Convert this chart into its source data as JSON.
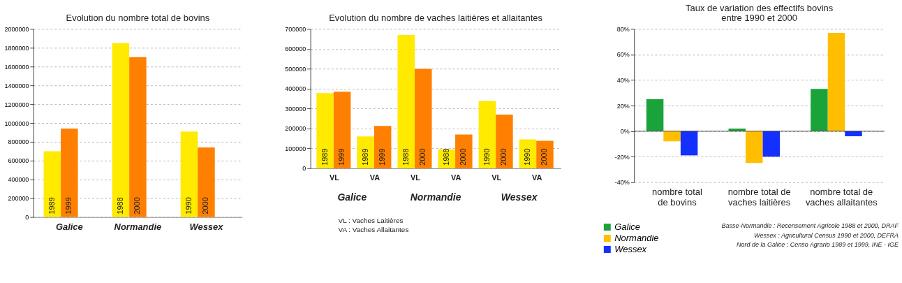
{
  "chart_data": [
    {
      "type": "bar",
      "title": "Evolution du nombre total de bovins",
      "categories": [
        "Galice",
        "Normandie",
        "Wessex"
      ],
      "series": [
        {
          "color": "#ffea00",
          "values": [
            700000,
            1850000,
            910000
          ]
        },
        {
          "color": "#ff8000",
          "values": [
            940000,
            1700000,
            740000
          ]
        }
      ],
      "ylim": [
        0,
        2000000
      ],
      "yticks": [
        0,
        200000,
        400000,
        600000,
        800000,
        1000000,
        1200000,
        1400000,
        1600000,
        1800000,
        2000000
      ],
      "grid": "y",
      "legend": false,
      "annotations": [
        "1989",
        "1988",
        "1990",
        "1999",
        "2000",
        "2000"
      ]
    },
    {
      "type": "bar",
      "title": "Evolution du nombre de vaches laitières et allaitantes",
      "categories": [
        "VL",
        "VA",
        "VL",
        "VA",
        "VL",
        "VA"
      ],
      "series": [
        {
          "color": "#ffea00",
          "values": [
            378000,
            160000,
            670000,
            95000,
            338000,
            145000
          ]
        },
        {
          "color": "#ff8000",
          "values": [
            385000,
            213000,
            500000,
            170000,
            270000,
            138000
          ]
        }
      ],
      "ylim": [
        0,
        700000
      ],
      "yticks": [
        0,
        100000,
        200000,
        300000,
        400000,
        500000,
        600000,
        700000
      ],
      "grid": "y",
      "legend": false,
      "annotations": [
        "1989",
        "1989",
        "1988",
        "1988",
        "1990",
        "1990",
        "1999",
        "1999",
        "2000",
        "2000",
        "2000",
        "2000",
        "Galice",
        "Normandie",
        "Wessex",
        "VL : Vaches Laitières",
        "VA : Vaches Allaitantes"
      ]
    },
    {
      "type": "bar",
      "title": "Taux de variation des effectifs bovins entre 1990 et 2000",
      "categories": [
        "nombre total de bovins",
        "nombre total de vaches laitières",
        "nombre total de vaches allaitantes"
      ],
      "series": [
        {
          "name": "Galice",
          "color": "#1aa33a",
          "values": [
            25,
            2,
            33
          ]
        },
        {
          "name": "Normandie",
          "color": "#ffbf00",
          "values": [
            -8,
            -25,
            77
          ]
        },
        {
          "name": "Wessex",
          "color": "#1430ff",
          "values": [
            -19,
            -20,
            -4
          ]
        }
      ],
      "ylim": [
        -40,
        80
      ],
      "yticks": [
        {
          "value": -40,
          "label": "-40%"
        },
        {
          "value": -20,
          "label": "-20%"
        },
        {
          "value": 0,
          "label": "0%"
        },
        {
          "value": 20,
          "label": "20%"
        },
        {
          "value": 40,
          "label": "40%"
        },
        {
          "value": 60,
          "label": "60%"
        },
        {
          "value": 80,
          "label": "80%"
        }
      ],
      "grid": "y",
      "legend": "bottom left",
      "annotations": [
        "Basse-Normandie : Recensement Agricole 1988 et 2000, DRAF",
        "Wessex : Agricultural Census 1990 et 2000, DEFRA",
        "Nord de la Galice : Censo Agrario 1989 et 1999, INE - IGE"
      ]
    }
  ]
}
